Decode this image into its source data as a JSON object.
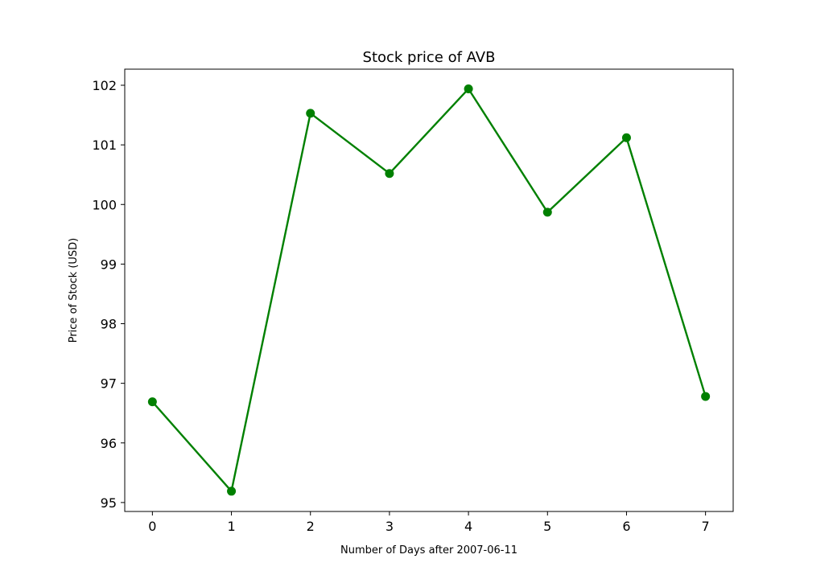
{
  "chart_data": {
    "type": "line",
    "title": "Stock price of AVB",
    "xlabel": "Number of Days after 2007-06-11",
    "ylabel": "Price of Stock (USD)",
    "x": [
      0,
      1,
      2,
      3,
      4,
      5,
      6,
      7
    ],
    "series": [
      {
        "values": [
          96.69,
          95.19,
          101.53,
          100.52,
          101.94,
          99.87,
          101.12,
          96.78
        ],
        "color": "#008000",
        "marker": "circle"
      }
    ],
    "x_ticks": [
      "0",
      "1",
      "2",
      "3",
      "4",
      "5",
      "6",
      "7"
    ],
    "y_ticks": [
      "95",
      "96",
      "97",
      "98",
      "99",
      "100",
      "101",
      "102"
    ],
    "xlim": [
      -0.35,
      7.35
    ],
    "ylim": [
      94.85,
      102.27
    ],
    "grid": false,
    "legend": "none"
  }
}
